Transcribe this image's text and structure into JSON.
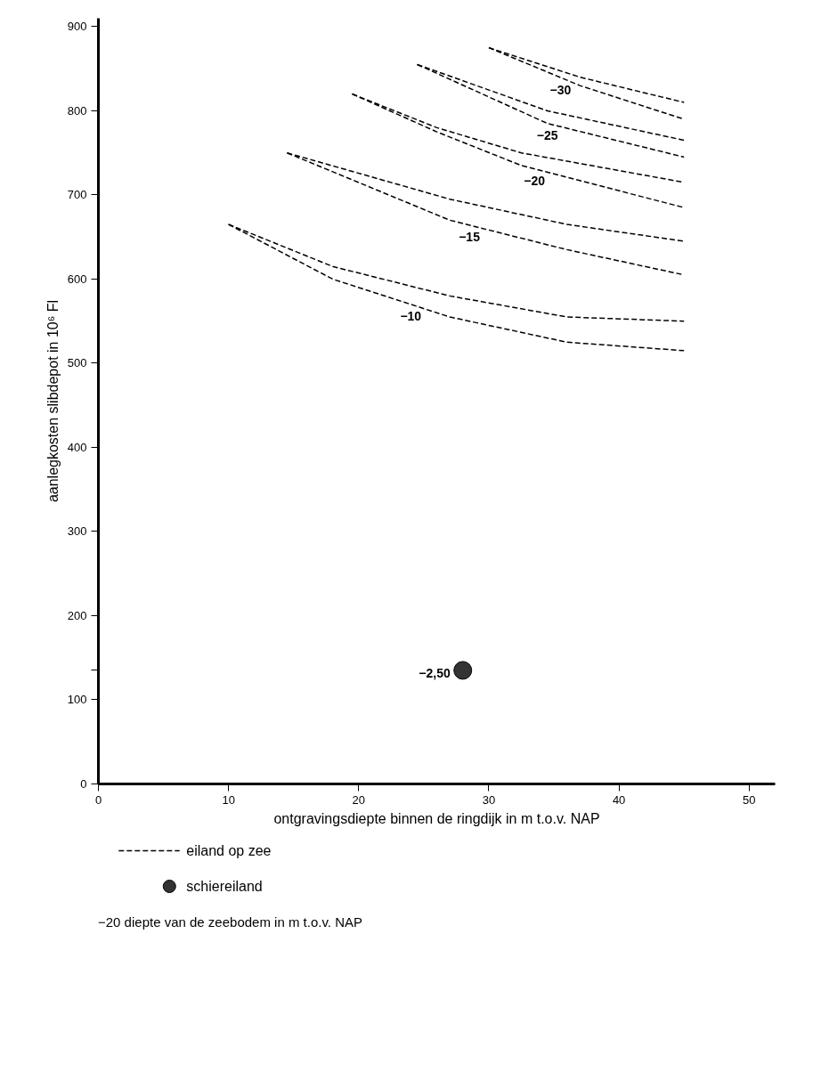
{
  "chart_data": {
    "type": "line",
    "xlabel": "ontgravingsdiepte binnen de ringdijk in m t.o.v. NAP",
    "ylabel": "aanlegkosten slibdepot in 10⁶ Fl",
    "xlim": [
      0,
      52
    ],
    "ylim": [
      0,
      910
    ],
    "xticks": [
      0,
      10,
      20,
      30,
      40,
      50
    ],
    "yticks": [
      0,
      100,
      {
        "value": 135,
        "label": null
      },
      200,
      300,
      400,
      500,
      600,
      700,
      800,
      900
    ],
    "legend": "bottom",
    "line_style": "dashed",
    "series": [
      {
        "name": "eiland op zee",
        "color": "#000000",
        "x": [
          10,
          18,
          27,
          36,
          45
        ],
        "values": [
          665,
          615,
          580,
          555,
          550
        ]
      },
      {
        "color": "#000000",
        "x": [
          10,
          18,
          27,
          36,
          45
        ],
        "values": [
          665,
          600,
          555,
          525,
          515
        ]
      },
      {
        "color": "#000000",
        "x": [
          14.5,
          27,
          36,
          45
        ],
        "values": [
          750,
          695,
          665,
          645
        ]
      },
      {
        "color": "#000000",
        "x": [
          14.5,
          27,
          36,
          45
        ],
        "values": [
          750,
          670,
          635,
          605
        ]
      },
      {
        "color": "#000000",
        "x": [
          19.5,
          26,
          32.5,
          45
        ],
        "values": [
          820,
          780,
          750,
          715
        ]
      },
      {
        "color": "#000000",
        "x": [
          19.5,
          26,
          32.5,
          45
        ],
        "values": [
          820,
          775,
          735,
          685
        ]
      },
      {
        "color": "#000000",
        "x": [
          24.5,
          34.5,
          45
        ],
        "values": [
          855,
          800,
          765
        ]
      },
      {
        "color": "#000000",
        "x": [
          24.5,
          34.5,
          45
        ],
        "values": [
          855,
          785,
          745
        ]
      },
      {
        "color": "#000000",
        "x": [
          30,
          37,
          45
        ],
        "values": [
          875,
          840,
          810
        ]
      },
      {
        "color": "#000000",
        "x": [
          30,
          37,
          45
        ],
        "values": [
          875,
          830,
          790
        ]
      },
      {
        "name": "schiereiland",
        "type": "scatter",
        "marker": "circle",
        "color": "#333333",
        "x": [
          28
        ],
        "values": [
          135
        ]
      }
    ],
    "annotations": [
      {
        "text": "−10",
        "x": 24,
        "y": 570
      },
      {
        "text": "−15",
        "x": 28.5,
        "y": 664
      },
      {
        "text": "−20",
        "x": 33.5,
        "y": 731
      },
      {
        "text": "−25",
        "x": 34.5,
        "y": 785
      },
      {
        "text": "−30",
        "x": 35.5,
        "y": 839
      },
      {
        "text": "−2,50",
        "x": 28,
        "y": 135
      },
      "−20 diepte van de zeebodem in m t.o.v. NAP"
    ]
  }
}
